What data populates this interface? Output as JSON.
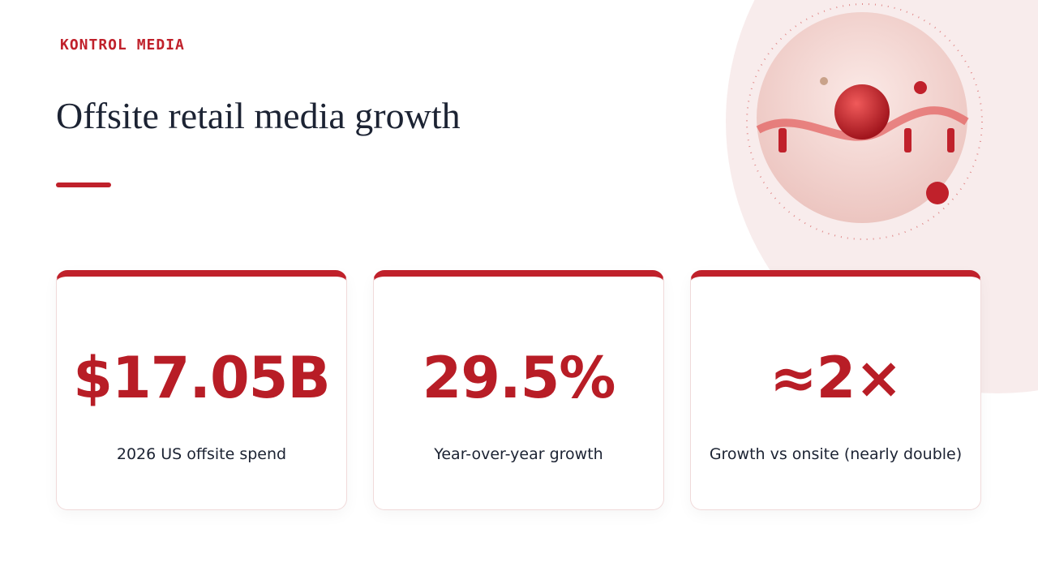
{
  "brand": "KONTROL MEDIA",
  "title": "Offsite retail media growth",
  "cards": [
    {
      "value": "$17.05B",
      "label": "2026 US offsite spend"
    },
    {
      "value": "29.5%",
      "label": "Year-over-year growth"
    },
    {
      "value": "≈2×",
      "label": "Growth vs onsite (nearly double)"
    }
  ]
}
